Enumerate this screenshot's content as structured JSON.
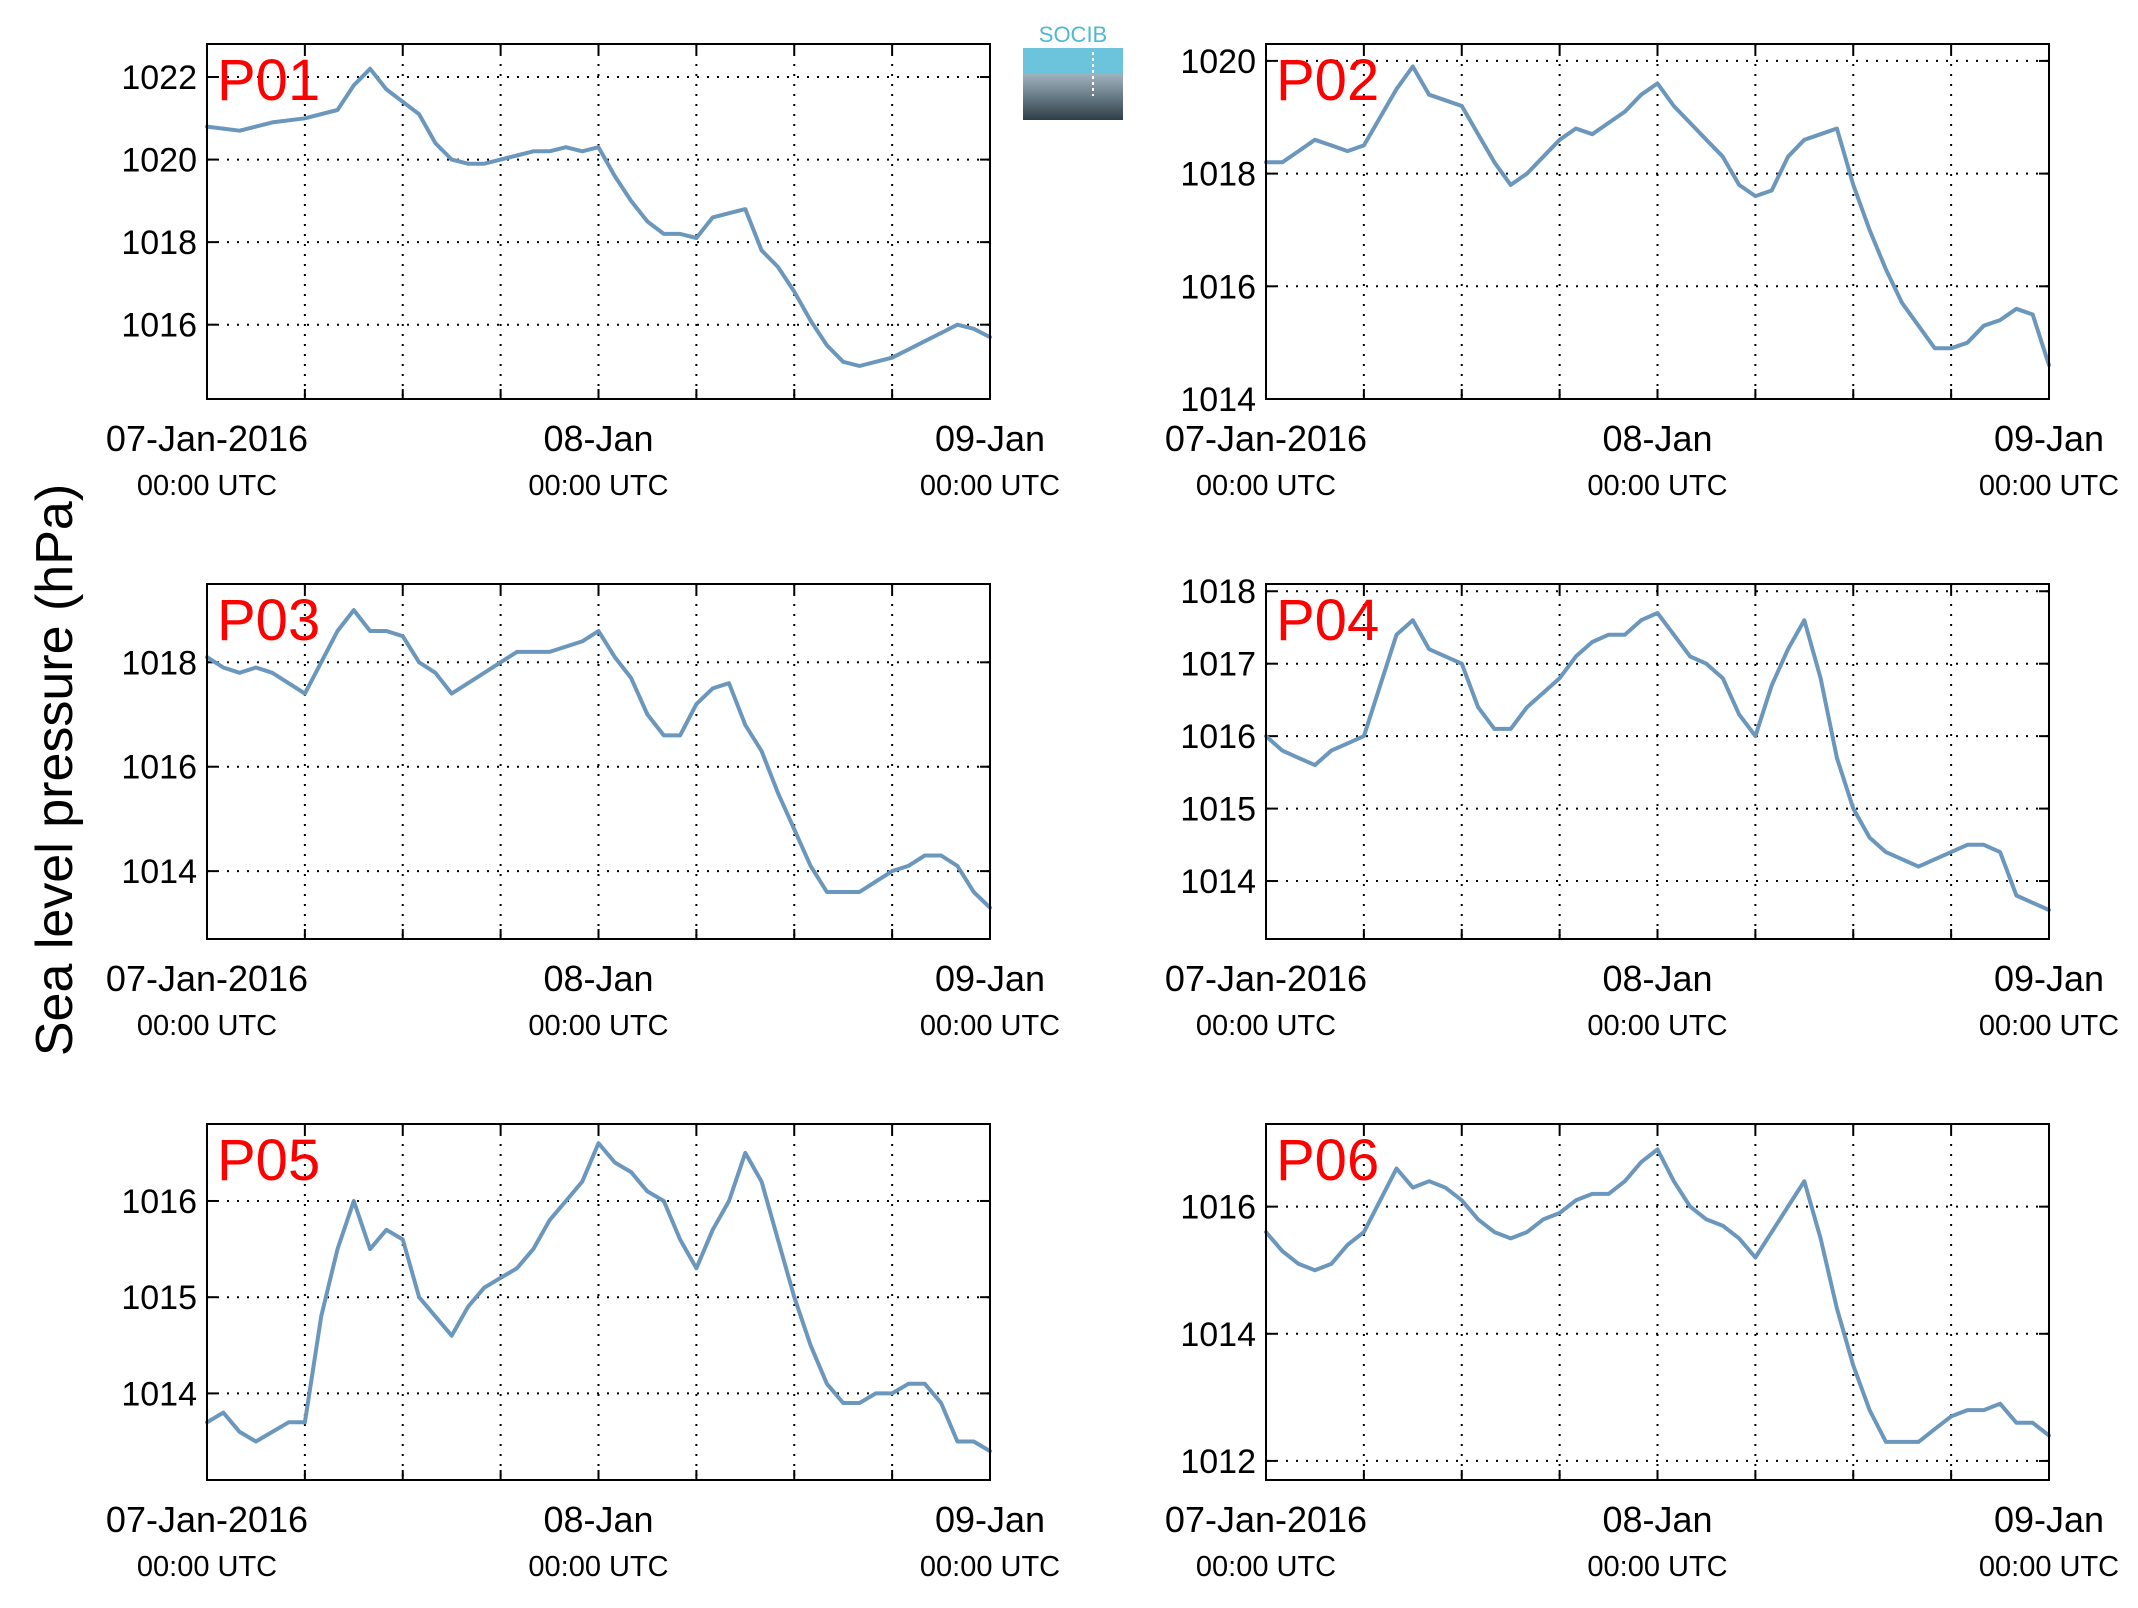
{
  "figure": {
    "ylabel": "Sea level pressure (hPa)",
    "logo_text": "SOCIB",
    "colors": {
      "line": "#6b97bd",
      "station_label": "#ff0000",
      "grid": "#000000"
    }
  },
  "chart_data": [
    {
      "type": "line",
      "station": "P01",
      "x_ticks": [
        {
          "date": "07-Jan-2016",
          "time": "00:00 UTC"
        },
        {
          "date": "08-Jan",
          "time": "00:00 UTC"
        },
        {
          "date": "09-Jan",
          "time": "00:00 UTC"
        }
      ],
      "xlim_hours": [
        0,
        48
      ],
      "ylim": [
        1014.2,
        1022.8
      ],
      "yticks": [
        1016,
        1018,
        1020,
        1022
      ],
      "grid": true,
      "x_hours": [
        0,
        2,
        4,
        6,
        8,
        9,
        10,
        11,
        12,
        13,
        14,
        15,
        16,
        17,
        18,
        19,
        20,
        21,
        22,
        23,
        24,
        25,
        26,
        27,
        28,
        29,
        30,
        31,
        32,
        33,
        34,
        35,
        36,
        37,
        38,
        39,
        40,
        41,
        42,
        43,
        44,
        45,
        46,
        47,
        48
      ],
      "values": [
        1020.8,
        1020.7,
        1020.9,
        1021.0,
        1021.2,
        1021.8,
        1022.2,
        1021.7,
        1021.4,
        1021.1,
        1020.4,
        1020.0,
        1019.9,
        1019.9,
        1020.0,
        1020.1,
        1020.2,
        1020.2,
        1020.3,
        1020.2,
        1020.3,
        1019.6,
        1019.0,
        1018.5,
        1018.2,
        1018.2,
        1018.1,
        1018.6,
        1018.7,
        1018.8,
        1017.8,
        1017.4,
        1016.8,
        1016.1,
        1015.5,
        1015.1,
        1015.0,
        1015.1,
        1015.2,
        1015.4,
        1015.6,
        1015.8,
        1016.0,
        1015.9,
        1015.7
      ]
    },
    {
      "type": "line",
      "station": "P02",
      "x_ticks": [
        {
          "date": "07-Jan-2016",
          "time": "00:00 UTC"
        },
        {
          "date": "08-Jan",
          "time": "00:00 UTC"
        },
        {
          "date": "09-Jan",
          "time": "00:00 UTC"
        }
      ],
      "xlim_hours": [
        0,
        48
      ],
      "ylim": [
        1014.0,
        1020.3
      ],
      "yticks": [
        1014,
        1016,
        1018,
        1020
      ],
      "grid": true,
      "x_hours": [
        0,
        1,
        2,
        3,
        4,
        5,
        6,
        7,
        8,
        9,
        10,
        11,
        12,
        13,
        14,
        15,
        16,
        17,
        18,
        19,
        20,
        21,
        22,
        23,
        24,
        25,
        26,
        27,
        28,
        29,
        30,
        31,
        32,
        33,
        34,
        35,
        36,
        37,
        38,
        39,
        40,
        41,
        42,
        43,
        44,
        45,
        46,
        47,
        48
      ],
      "values": [
        1018.2,
        1018.2,
        1018.4,
        1018.6,
        1018.5,
        1018.4,
        1018.5,
        1019.0,
        1019.5,
        1019.9,
        1019.4,
        1019.3,
        1019.2,
        1018.7,
        1018.2,
        1017.8,
        1018.0,
        1018.3,
        1018.6,
        1018.8,
        1018.7,
        1018.9,
        1019.1,
        1019.4,
        1019.6,
        1019.2,
        1018.9,
        1018.6,
        1018.3,
        1017.8,
        1017.6,
        1017.7,
        1018.3,
        1018.6,
        1018.7,
        1018.8,
        1017.8,
        1017.0,
        1016.3,
        1015.7,
        1015.3,
        1014.9,
        1014.9,
        1015.0,
        1015.3,
        1015.4,
        1015.6,
        1015.5,
        1014.6
      ]
    },
    {
      "type": "line",
      "station": "P03",
      "x_ticks": [
        {
          "date": "07-Jan-2016",
          "time": "00:00 UTC"
        },
        {
          "date": "08-Jan",
          "time": "00:00 UTC"
        },
        {
          "date": "09-Jan",
          "time": "00:00 UTC"
        }
      ],
      "xlim_hours": [
        0,
        48
      ],
      "ylim": [
        1012.7,
        1019.5
      ],
      "yticks": [
        1014,
        1016,
        1018
      ],
      "grid": true,
      "x_hours": [
        0,
        1,
        2,
        3,
        4,
        5,
        6,
        7,
        8,
        9,
        10,
        11,
        12,
        13,
        14,
        15,
        16,
        17,
        18,
        19,
        20,
        21,
        22,
        23,
        24,
        25,
        26,
        27,
        28,
        29,
        30,
        31,
        32,
        33,
        34,
        35,
        36,
        37,
        38,
        39,
        40,
        41,
        42,
        43,
        44,
        45,
        46,
        47,
        48
      ],
      "values": [
        1018.1,
        1017.9,
        1017.8,
        1017.9,
        1017.8,
        1017.6,
        1017.4,
        1018.0,
        1018.6,
        1019.0,
        1018.6,
        1018.6,
        1018.5,
        1018.0,
        1017.8,
        1017.4,
        1017.6,
        1017.8,
        1018.0,
        1018.2,
        1018.2,
        1018.2,
        1018.3,
        1018.4,
        1018.6,
        1018.1,
        1017.7,
        1017.0,
        1016.6,
        1016.6,
        1017.2,
        1017.5,
        1017.6,
        1016.8,
        1016.3,
        1015.5,
        1014.8,
        1014.1,
        1013.6,
        1013.6,
        1013.6,
        1013.8,
        1014.0,
        1014.1,
        1014.3,
        1014.3,
        1014.1,
        1013.6,
        1013.3
      ]
    },
    {
      "type": "line",
      "station": "P04",
      "x_ticks": [
        {
          "date": "07-Jan-2016",
          "time": "00:00 UTC"
        },
        {
          "date": "08-Jan",
          "time": "00:00 UTC"
        },
        {
          "date": "09-Jan",
          "time": "00:00 UTC"
        }
      ],
      "xlim_hours": [
        0,
        48
      ],
      "ylim": [
        1013.2,
        1018.1
      ],
      "yticks": [
        1014,
        1015,
        1016,
        1017,
        1018
      ],
      "grid": true,
      "x_hours": [
        0,
        1,
        2,
        3,
        4,
        5,
        6,
        7,
        8,
        9,
        10,
        11,
        12,
        13,
        14,
        15,
        16,
        17,
        18,
        19,
        20,
        21,
        22,
        23,
        24,
        25,
        26,
        27,
        28,
        29,
        30,
        31,
        32,
        33,
        34,
        35,
        36,
        37,
        38,
        39,
        40,
        41,
        42,
        43,
        44,
        45,
        46,
        47,
        48
      ],
      "values": [
        1016.0,
        1015.8,
        1015.7,
        1015.6,
        1015.8,
        1015.9,
        1016.0,
        1016.7,
        1017.4,
        1017.6,
        1017.2,
        1017.1,
        1017.0,
        1016.4,
        1016.1,
        1016.1,
        1016.4,
        1016.6,
        1016.8,
        1017.1,
        1017.3,
        1017.4,
        1017.4,
        1017.6,
        1017.7,
        1017.4,
        1017.1,
        1017.0,
        1016.8,
        1016.3,
        1016.0,
        1016.7,
        1017.2,
        1017.6,
        1016.8,
        1015.7,
        1015.0,
        1014.6,
        1014.4,
        1014.3,
        1014.2,
        1014.3,
        1014.4,
        1014.5,
        1014.5,
        1014.4,
        1013.8,
        1013.7,
        1013.6
      ]
    },
    {
      "type": "line",
      "station": "P05",
      "x_ticks": [
        {
          "date": "07-Jan-2016",
          "time": "00:00 UTC"
        },
        {
          "date": "08-Jan",
          "time": "00:00 UTC"
        },
        {
          "date": "09-Jan",
          "time": "00:00 UTC"
        }
      ],
      "xlim_hours": [
        0,
        48
      ],
      "ylim": [
        1013.1,
        1016.8
      ],
      "yticks": [
        1014,
        1015,
        1016
      ],
      "grid": true,
      "x_hours": [
        0,
        1,
        2,
        3,
        4,
        5,
        6,
        7,
        8,
        9,
        10,
        11,
        12,
        13,
        14,
        15,
        16,
        17,
        18,
        19,
        20,
        21,
        22,
        23,
        24,
        25,
        26,
        27,
        28,
        29,
        30,
        31,
        32,
        33,
        34,
        35,
        36,
        37,
        38,
        39,
        40,
        41,
        42,
        43,
        44,
        45,
        46,
        47,
        48
      ],
      "values": [
        1013.7,
        1013.8,
        1013.6,
        1013.5,
        1013.6,
        1013.7,
        1013.7,
        1014.8,
        1015.5,
        1016.0,
        1015.5,
        1015.7,
        1015.6,
        1015.0,
        1014.8,
        1014.6,
        1014.9,
        1015.1,
        1015.2,
        1015.3,
        1015.5,
        1015.8,
        1016.0,
        1016.2,
        1016.6,
        1016.4,
        1016.3,
        1016.1,
        1016.0,
        1015.6,
        1015.3,
        1015.7,
        1016.0,
        1016.5,
        1016.2,
        1015.6,
        1015.0,
        1014.5,
        1014.1,
        1013.9,
        1013.9,
        1014.0,
        1014.0,
        1014.1,
        1014.1,
        1013.9,
        1013.5,
        1013.5,
        1013.4
      ]
    },
    {
      "type": "line",
      "station": "P06",
      "x_ticks": [
        {
          "date": "07-Jan-2016",
          "time": "00:00 UTC"
        },
        {
          "date": "08-Jan",
          "time": "00:00 UTC"
        },
        {
          "date": "09-Jan",
          "time": "00:00 UTC"
        }
      ],
      "xlim_hours": [
        0,
        48
      ],
      "ylim": [
        1011.7,
        1017.3
      ],
      "yticks": [
        1012,
        1014,
        1016
      ],
      "grid": true,
      "x_hours": [
        0,
        1,
        2,
        3,
        4,
        5,
        6,
        7,
        8,
        9,
        10,
        11,
        12,
        13,
        14,
        15,
        16,
        17,
        18,
        19,
        20,
        21,
        22,
        23,
        24,
        25,
        26,
        27,
        28,
        29,
        30,
        31,
        32,
        33,
        34,
        35,
        36,
        37,
        38,
        39,
        40,
        41,
        42,
        43,
        44,
        45,
        46,
        47,
        48
      ],
      "values": [
        1015.6,
        1015.3,
        1015.1,
        1015.0,
        1015.1,
        1015.4,
        1015.6,
        1016.1,
        1016.6,
        1016.3,
        1016.4,
        1016.3,
        1016.1,
        1015.8,
        1015.6,
        1015.5,
        1015.6,
        1015.8,
        1015.9,
        1016.1,
        1016.2,
        1016.2,
        1016.4,
        1016.7,
        1016.9,
        1016.4,
        1016.0,
        1015.8,
        1015.7,
        1015.5,
        1015.2,
        1015.6,
        1016.0,
        1016.4,
        1015.5,
        1014.4,
        1013.5,
        1012.8,
        1012.3,
        1012.3,
        1012.3,
        1012.5,
        1012.7,
        1012.8,
        1012.8,
        1012.9,
        1012.6,
        1012.6,
        1012.4
      ]
    }
  ]
}
